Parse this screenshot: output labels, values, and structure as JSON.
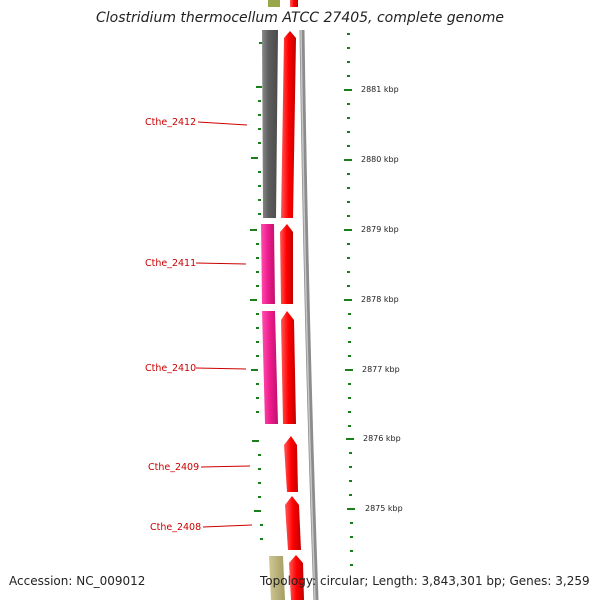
{
  "title": "Clostridium thermocellum ATCC 27405, complete genome",
  "footer": {
    "accession": "Accession: NC_009012",
    "stats": "Topology: circular; Length: 3,843,301 bp; Genes: 3,259"
  },
  "scale_labels": [
    "2881 kbp",
    "2880 kbp",
    "2879 kbp",
    "2878 kbp",
    "2877 kbp",
    "2876 kbp",
    "2875 kbp"
  ],
  "genes": [
    "Cthe_2412",
    "Cthe_2411",
    "Cthe_2410",
    "Cthe_2409",
    "Cthe_2408"
  ],
  "colors": {
    "cds_forward": "#ff0000",
    "feature_gray": "#6e6e6e",
    "feature_pink": "#ee1c8c",
    "feature_olive": "#b7b07a",
    "tick_green": "#1a7f1a",
    "backbone": "#8c8c8c",
    "label_red": "#cc0000"
  }
}
